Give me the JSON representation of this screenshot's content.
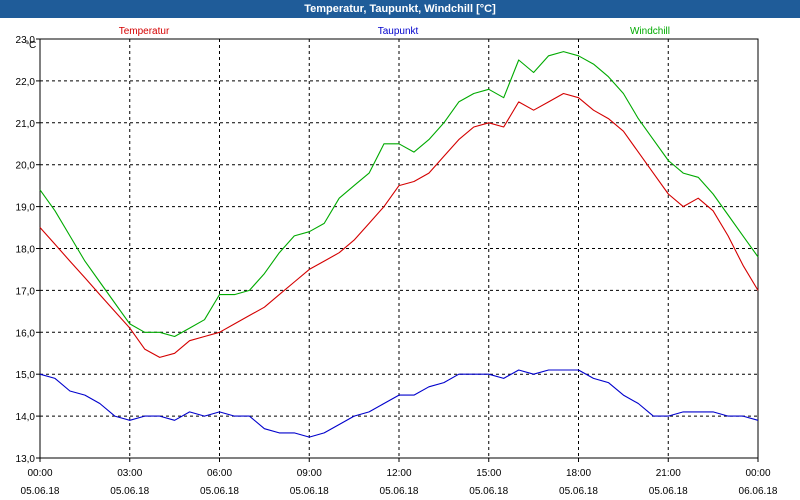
{
  "window": {
    "title": "Temperatur, Taupunkt, Windchill [°C]"
  },
  "chart_data": {
    "type": "line",
    "title": "Temperatur, Taupunkt, Windchill [°C]",
    "ylabel": "°C",
    "xlabel": "",
    "ylim": [
      13.0,
      23.0
    ],
    "y_ticks": [
      "13,0",
      "14,0",
      "15,0",
      "16,0",
      "17,0",
      "18,0",
      "19,0",
      "20,0",
      "21,0",
      "22,0",
      "23,0"
    ],
    "x_ticks": [
      {
        "time": "00:00",
        "date": "05.06.18"
      },
      {
        "time": "03:00",
        "date": "05.06.18"
      },
      {
        "time": "06:00",
        "date": "05.06.18"
      },
      {
        "time": "09:00",
        "date": "05.06.18"
      },
      {
        "time": "12:00",
        "date": "05.06.18"
      },
      {
        "time": "15:00",
        "date": "05.06.18"
      },
      {
        "time": "18:00",
        "date": "05.06.18"
      },
      {
        "time": "21:00",
        "date": "05.06.18"
      },
      {
        "time": "00:00",
        "date": "06.06.18"
      }
    ],
    "x_hours": [
      0,
      0.5,
      1,
      1.5,
      2,
      2.5,
      3,
      3.5,
      4,
      4.5,
      5,
      5.5,
      6,
      6.5,
      7,
      7.5,
      8,
      8.5,
      9,
      9.5,
      10,
      10.5,
      11,
      11.5,
      12,
      12.5,
      13,
      13.5,
      14,
      14.5,
      15,
      15.5,
      16,
      16.5,
      17,
      17.5,
      18,
      18.5,
      19,
      19.5,
      20,
      20.5,
      21,
      21.5,
      22,
      22.5,
      23,
      23.5,
      24
    ],
    "series": [
      {
        "name": "Temperatur",
        "color": "#d40000",
        "values": [
          18.5,
          18.1,
          17.7,
          17.3,
          16.9,
          16.5,
          16.1,
          15.6,
          15.4,
          15.5,
          15.8,
          15.9,
          16.0,
          16.2,
          16.4,
          16.6,
          16.9,
          17.2,
          17.5,
          17.7,
          17.9,
          18.2,
          18.6,
          19.0,
          19.5,
          19.6,
          19.8,
          20.2,
          20.6,
          20.9,
          21.0,
          20.9,
          21.5,
          21.3,
          21.5,
          21.7,
          21.6,
          21.3,
          21.1,
          20.8,
          20.3,
          19.8,
          19.3,
          19.0,
          19.2,
          18.9,
          18.3,
          17.6,
          17.0
        ]
      },
      {
        "name": "Taupunkt",
        "color": "#0000cc",
        "values": [
          15.0,
          14.9,
          14.6,
          14.5,
          14.3,
          14.0,
          13.9,
          14.0,
          14.0,
          13.9,
          14.1,
          14.0,
          14.1,
          14.0,
          14.0,
          13.7,
          13.6,
          13.6,
          13.5,
          13.6,
          13.8,
          14.0,
          14.1,
          14.3,
          14.5,
          14.5,
          14.7,
          14.8,
          15.0,
          15.0,
          15.0,
          14.9,
          15.1,
          15.0,
          15.1,
          15.1,
          15.1,
          14.9,
          14.8,
          14.5,
          14.3,
          14.0,
          14.0,
          14.1,
          14.1,
          14.1,
          14.0,
          14.0,
          13.9
        ]
      },
      {
        "name": "Windchill",
        "color": "#00aa00",
        "values": [
          19.4,
          18.9,
          18.3,
          17.7,
          17.2,
          16.7,
          16.2,
          16.0,
          16.0,
          15.9,
          16.1,
          16.3,
          16.9,
          16.9,
          17.0,
          17.4,
          17.9,
          18.3,
          18.4,
          18.6,
          19.2,
          19.5,
          19.8,
          20.5,
          20.5,
          20.3,
          20.6,
          21.0,
          21.5,
          21.7,
          21.8,
          21.6,
          22.5,
          22.2,
          22.6,
          22.7,
          22.6,
          22.4,
          22.1,
          21.7,
          21.1,
          20.6,
          20.1,
          19.8,
          19.7,
          19.3,
          18.8,
          18.3,
          17.8
        ]
      }
    ]
  }
}
